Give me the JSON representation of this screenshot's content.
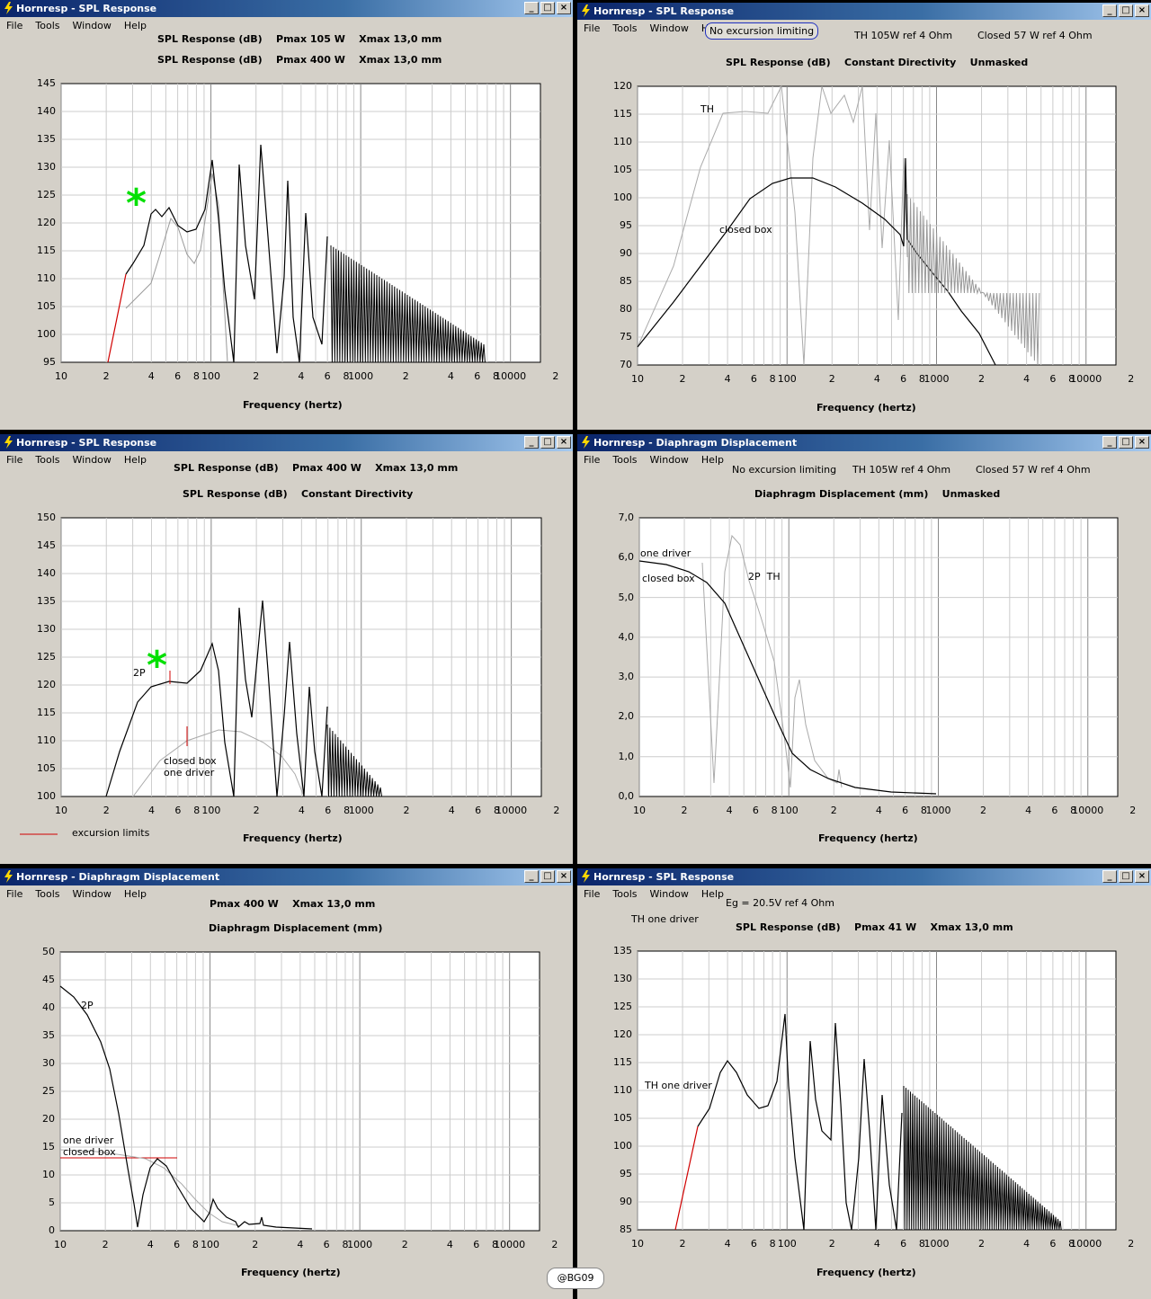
{
  "menu": [
    "File",
    "Tools",
    "Window",
    "Help"
  ],
  "watermark": "@BG09",
  "windows": [
    {
      "id": "w1",
      "title": "Hornresp - SPL Response",
      "hdr1": "SPL Response (dB)    Pmax 105 W    Xmax 13,0 mm",
      "hdr2": "SPL Response (dB)    Pmax 400 W    Xmax 13,0 mm",
      "xlabel": "Frequency (hertz)",
      "yticks": [
        "145",
        "140",
        "135",
        "130",
        "125",
        "120",
        "115",
        "110",
        "105",
        "100",
        "95"
      ],
      "xticks": [
        "10",
        "2",
        "4",
        "6",
        "8",
        "100",
        "2",
        "4",
        "6",
        "8",
        "1000",
        "2",
        "4",
        "6",
        "8",
        "10000",
        "2"
      ]
    },
    {
      "id": "w2",
      "title": "Hornresp - SPL Response",
      "note": "No excursion limiting",
      "hdrA": "TH 105W ref 4 Ohm",
      "hdrB": "Closed 57 W ref 4 Ohm",
      "hdr2": "SPL Response (dB)    Constant Directivity    Unmasked",
      "xlabel": "Frequency (hertz)",
      "labTH": "TH",
      "labCB": "closed box",
      "yticks": [
        "120",
        "115",
        "110",
        "105",
        "100",
        "95",
        "90",
        "85",
        "80",
        "75",
        "70"
      ],
      "xticks": [
        "10",
        "2",
        "4",
        "6",
        "8",
        "100",
        "2",
        "4",
        "6",
        "8",
        "1000",
        "2",
        "4",
        "6",
        "8",
        "10000",
        "2"
      ]
    },
    {
      "id": "w3",
      "title": "Hornresp - SPL Response",
      "hdr1": "SPL Response (dB)    Pmax 400 W    Xmax 13,0 mm",
      "hdr2": "SPL Response (dB)    Constant Directivity",
      "xlabel": "Frequency (hertz)",
      "lab2P": "2P",
      "labCB": "closed box",
      "labOD": "one driver",
      "legend": "excursion limits",
      "yticks": [
        "150",
        "145",
        "140",
        "135",
        "130",
        "125",
        "120",
        "115",
        "110",
        "105",
        "100"
      ],
      "xticks": [
        "10",
        "2",
        "4",
        "6",
        "8",
        "100",
        "2",
        "4",
        "6",
        "8",
        "1000",
        "2",
        "4",
        "6",
        "8",
        "10000",
        "2"
      ]
    },
    {
      "id": "w4",
      "title": "Hornresp - Diaphragm Displacement",
      "hdr0": "No excursion limiting",
      "hdrA": "TH 105W ref 4 Ohm",
      "hdrB": "Closed 57 W ref 4 Ohm",
      "hdr2": "Diaphragm Displacement (mm)    Unmasked",
      "xlabel": "Frequency (hertz)",
      "labOD": "one driver",
      "labCB": "closed box",
      "lab2PTH": "2P  TH",
      "yticks": [
        "7,0",
        "6,0",
        "5,0",
        "4,0",
        "3,0",
        "2,0",
        "1,0",
        "0,0"
      ],
      "xticks": [
        "10",
        "2",
        "4",
        "6",
        "8",
        "100",
        "2",
        "4",
        "6",
        "8",
        "1000",
        "2",
        "4",
        "6",
        "8",
        "10000",
        "2"
      ]
    },
    {
      "id": "w5",
      "title": "Hornresp - Diaphragm Displacement",
      "hdr1": "Pmax 400 W    Xmax 13,0 mm",
      "hdr2": "Diaphragm Displacement (mm)",
      "xlabel": "Frequency (hertz)",
      "lab2P": "2P",
      "labOD": "one driver",
      "labCB": "closed box",
      "yticks": [
        "50",
        "45",
        "40",
        "35",
        "30",
        "25",
        "20",
        "15",
        "10",
        "5",
        "0"
      ],
      "xticks": [
        "10",
        "2",
        "4",
        "6",
        "8",
        "100",
        "2",
        "4",
        "6",
        "8",
        "1000",
        "2",
        "4",
        "6",
        "8",
        "10000",
        "2"
      ]
    },
    {
      "id": "w6",
      "title": "Hornresp - SPL Response",
      "hdr0": "Eg = 20.5V ref 4 Ohm",
      "hdrTH": "TH one driver",
      "hdr2": "SPL Response (dB)    Pmax 41 W    Xmax 13,0 mm",
      "xlabel": "Frequency (hertz)",
      "labTH": "TH one driver",
      "yticks": [
        "135",
        "130",
        "125",
        "120",
        "115",
        "110",
        "105",
        "100",
        "95",
        "90",
        "85"
      ],
      "xticks": [
        "10",
        "2",
        "4",
        "6",
        "8",
        "100",
        "2",
        "4",
        "6",
        "8",
        "1000",
        "2",
        "4",
        "6",
        "8",
        "10000",
        "2"
      ]
    }
  ]
}
